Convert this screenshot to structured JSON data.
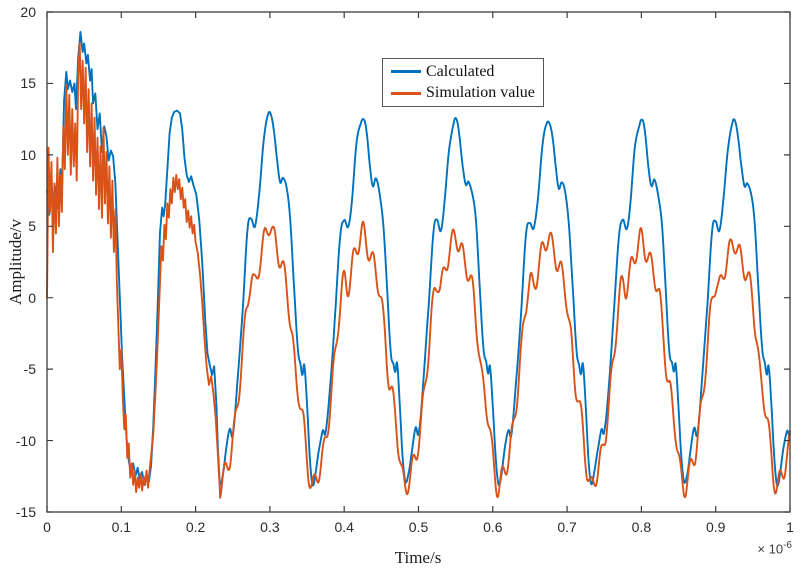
{
  "chart_data": {
    "type": "line",
    "title": "",
    "xlabel": "Time/s",
    "ylabel": "Amplitude/v",
    "x_offset": {
      "prefix": "× 10",
      "exponent": "-6"
    },
    "xlim": [
      0,
      1
    ],
    "ylim": [
      -15,
      20
    ],
    "grid": false,
    "axis_color": "#3c3c3c",
    "xticks": {
      "values": [
        0,
        0.1,
        0.2,
        0.3,
        0.4,
        0.5,
        0.6,
        0.7,
        0.8,
        0.9,
        1
      ],
      "labels": [
        "0",
        "0.1",
        "0.2",
        "0.3",
        "0.4",
        "0.5",
        "0.6",
        "0.7",
        "0.8",
        "0.9",
        "1"
      ]
    },
    "yticks": {
      "values": [
        -15,
        -10,
        -5,
        0,
        5,
        10,
        15,
        20
      ],
      "labels": [
        "-15",
        "-10",
        "-5",
        "0",
        "5",
        "10",
        "15",
        "20"
      ]
    },
    "legend": {
      "position": "top-center",
      "entries": [
        {
          "label": "Calculated",
          "color": "#0072BD"
        },
        {
          "label": "Simulation value",
          "color": "#D95319"
        }
      ]
    },
    "series": [
      {
        "name": "Calculated",
        "color": "#0072BD",
        "line_width": 1.9,
        "initial_points": [
          [
            0.0,
            7.5
          ],
          [
            0.003,
            5.8
          ],
          [
            0.006,
            8.2
          ],
          [
            0.009,
            6.0
          ],
          [
            0.012,
            7.8
          ],
          [
            0.015,
            6.2
          ],
          [
            0.018,
            9.0
          ],
          [
            0.02,
            7.2
          ],
          [
            0.023,
            13.8
          ],
          [
            0.026,
            15.8
          ],
          [
            0.028,
            14.6
          ],
          [
            0.031,
            15.2
          ],
          [
            0.034,
            14.4
          ],
          [
            0.037,
            15.0
          ],
          [
            0.039,
            13.2
          ],
          [
            0.042,
            16.8
          ],
          [
            0.045,
            18.6
          ],
          [
            0.048,
            17.2
          ],
          [
            0.05,
            17.8
          ],
          [
            0.053,
            16.4
          ],
          [
            0.055,
            17.0
          ],
          [
            0.058,
            15.2
          ],
          [
            0.06,
            16.0
          ],
          [
            0.062,
            13.6
          ],
          [
            0.065,
            14.3
          ],
          [
            0.068,
            11.8
          ],
          [
            0.071,
            12.9
          ],
          [
            0.074,
            10.2
          ],
          [
            0.077,
            12.0
          ],
          [
            0.08,
            11.3
          ],
          [
            0.083,
            9.6
          ],
          [
            0.086,
            10.3
          ],
          [
            0.089,
            9.9
          ],
          [
            0.092,
            8.0
          ],
          [
            0.095,
            4.0
          ],
          [
            0.098,
            0.0
          ],
          [
            0.101,
            -4.0
          ],
          [
            0.104,
            -7.0
          ],
          [
            0.107,
            -9.8
          ],
          [
            0.11,
            -11.4
          ],
          [
            0.113,
            -12.2
          ],
          [
            0.116,
            -11.6
          ],
          [
            0.119,
            -12.5
          ],
          [
            0.122,
            -11.9
          ],
          [
            0.125,
            -12.8
          ],
          [
            0.128,
            -12.2
          ],
          [
            0.131,
            -13.1
          ],
          [
            0.134,
            -12.5
          ],
          [
            0.137,
            -12.9
          ],
          [
            0.14,
            -11.8
          ],
          [
            0.143,
            -9.0
          ],
          [
            0.146,
            -5.0
          ],
          [
            0.149,
            -0.5
          ],
          [
            0.152,
            4.5
          ],
          [
            0.155,
            6.3
          ],
          [
            0.157,
            5.7
          ],
          [
            0.159,
            6.5
          ],
          [
            0.162,
            9.0
          ],
          [
            0.165,
            11.5
          ],
          [
            0.168,
            12.6
          ],
          [
            0.171,
            13.0
          ],
          [
            0.175,
            13.1
          ],
          [
            0.179,
            12.9
          ],
          [
            0.182,
            11.8
          ],
          [
            0.185,
            9.8
          ],
          [
            0.188,
            8.6
          ],
          [
            0.191,
            8.1
          ],
          [
            0.194,
            8.5
          ],
          [
            0.197,
            7.9
          ],
          [
            0.201,
            7.2
          ],
          [
            0.205,
            5.4
          ],
          [
            0.209,
            2.4
          ],
          [
            0.213,
            -1.6
          ],
          [
            0.216,
            -3.9
          ],
          [
            0.219,
            -4.7
          ],
          [
            0.222,
            -5.4
          ],
          [
            0.225,
            -4.8
          ],
          [
            0.228,
            -7.5
          ],
          [
            0.23,
            -10.5
          ],
          [
            0.2325,
            -13.0
          ]
        ],
        "cycle": {
          "start": 0.2325,
          "period": 0.125,
          "shape": [
            [
              0.0,
              -13.0
            ],
            [
              0.03,
              -12.4
            ],
            [
              0.07,
              -10.6
            ],
            [
              0.11,
              -9.2
            ],
            [
              0.14,
              -9.5
            ],
            [
              0.19,
              -6.0
            ],
            [
              0.25,
              -0.5
            ],
            [
              0.3,
              4.7
            ],
            [
              0.34,
              5.6
            ],
            [
              0.38,
              5.0
            ],
            [
              0.42,
              6.9
            ],
            [
              0.47,
              10.9
            ],
            [
              0.52,
              12.7
            ],
            [
              0.55,
              12.9
            ],
            [
              0.58,
              11.9
            ],
            [
              0.62,
              9.4
            ],
            [
              0.65,
              8.1
            ],
            [
              0.68,
              8.5
            ],
            [
              0.72,
              7.6
            ],
            [
              0.76,
              5.4
            ],
            [
              0.8,
              0.8
            ],
            [
              0.84,
              -3.6
            ],
            [
              0.87,
              -4.6
            ],
            [
              0.89,
              -5.3
            ],
            [
              0.91,
              -4.7
            ],
            [
              0.94,
              -7.6
            ],
            [
              0.97,
              -11.2
            ],
            [
              1.0,
              -13.0
            ]
          ],
          "pos_scales": [
            1.0,
            0.97,
            0.96,
            0.955,
            0.96,
            0.955,
            0.955
          ]
        },
        "ripple": {
          "amp": 0.12,
          "freq": 75,
          "phase": 0
        }
      },
      {
        "name": "Simulation value",
        "color": "#D95319",
        "line_width": 1.9,
        "initial_points": [
          [
            0.0,
            0.0
          ],
          [
            0.002,
            10.5
          ],
          [
            0.004,
            6.0
          ],
          [
            0.006,
            9.5
          ],
          [
            0.008,
            3.2
          ],
          [
            0.01,
            8.0
          ],
          [
            0.012,
            4.5
          ],
          [
            0.014,
            9.8
          ],
          [
            0.016,
            5.0
          ],
          [
            0.018,
            8.6
          ],
          [
            0.02,
            6.0
          ],
          [
            0.022,
            12.0
          ],
          [
            0.024,
            9.0
          ],
          [
            0.026,
            14.9
          ],
          [
            0.028,
            10.0
          ],
          [
            0.03,
            14.2
          ],
          [
            0.032,
            8.6
          ],
          [
            0.034,
            13.2
          ],
          [
            0.036,
            9.2
          ],
          [
            0.038,
            12.2
          ],
          [
            0.04,
            8.2
          ],
          [
            0.042,
            15.6
          ],
          [
            0.044,
            17.8
          ],
          [
            0.046,
            13.2
          ],
          [
            0.048,
            16.6
          ],
          [
            0.05,
            12.2
          ],
          [
            0.052,
            16.1
          ],
          [
            0.054,
            10.2
          ],
          [
            0.056,
            14.6
          ],
          [
            0.058,
            9.2
          ],
          [
            0.06,
            13.6
          ],
          [
            0.062,
            8.2
          ],
          [
            0.064,
            12.6
          ],
          [
            0.066,
            7.2
          ],
          [
            0.068,
            11.2
          ],
          [
            0.07,
            6.2
          ],
          [
            0.072,
            10.6
          ],
          [
            0.074,
            5.6
          ],
          [
            0.076,
            11.9
          ],
          [
            0.078,
            6.6
          ],
          [
            0.08,
            10.2
          ],
          [
            0.082,
            5.2
          ],
          [
            0.084,
            9.2
          ],
          [
            0.086,
            4.2
          ],
          [
            0.088,
            8.2
          ],
          [
            0.09,
            3.2
          ],
          [
            0.092,
            6.2
          ],
          [
            0.094,
            1.2
          ],
          [
            0.096,
            -2.0
          ],
          [
            0.098,
            -5.0
          ],
          [
            0.1,
            -3.6
          ],
          [
            0.102,
            -7.0
          ],
          [
            0.104,
            -9.2
          ],
          [
            0.106,
            -8.2
          ],
          [
            0.108,
            -11.2
          ],
          [
            0.11,
            -10.2
          ],
          [
            0.112,
            -12.6
          ],
          [
            0.114,
            -11.6
          ],
          [
            0.116,
            -13.1
          ],
          [
            0.118,
            -12.1
          ],
          [
            0.12,
            -13.6
          ],
          [
            0.122,
            -12.6
          ],
          [
            0.124,
            -13.3
          ],
          [
            0.126,
            -12.3
          ],
          [
            0.128,
            -13.5
          ],
          [
            0.13,
            -12.5
          ],
          [
            0.132,
            -13.1
          ],
          [
            0.134,
            -12.1
          ],
          [
            0.136,
            -13.3
          ],
          [
            0.138,
            -12.1
          ],
          [
            0.14,
            -11.1
          ],
          [
            0.143,
            -9.6
          ],
          [
            0.146,
            -6.6
          ],
          [
            0.149,
            -3.1
          ],
          [
            0.152,
            1.0
          ],
          [
            0.154,
            3.6
          ],
          [
            0.156,
            2.6
          ],
          [
            0.158,
            5.1
          ],
          [
            0.16,
            4.1
          ],
          [
            0.162,
            6.6
          ],
          [
            0.164,
            5.6
          ],
          [
            0.166,
            7.6
          ],
          [
            0.168,
            6.6
          ],
          [
            0.17,
            8.4
          ],
          [
            0.172,
            7.4
          ],
          [
            0.174,
            8.6
          ],
          [
            0.176,
            7.6
          ],
          [
            0.178,
            8.3
          ],
          [
            0.18,
            6.9
          ],
          [
            0.182,
            7.7
          ],
          [
            0.184,
            6.3
          ],
          [
            0.186,
            6.9
          ],
          [
            0.188,
            5.3
          ],
          [
            0.19,
            6.1
          ],
          [
            0.192,
            4.9
          ],
          [
            0.194,
            5.7
          ],
          [
            0.196,
            4.5
          ],
          [
            0.198,
            5.1
          ],
          [
            0.2,
            3.9
          ],
          [
            0.203,
            3.1
          ],
          [
            0.206,
            1.6
          ],
          [
            0.209,
            -0.4
          ],
          [
            0.212,
            -2.9
          ],
          [
            0.215,
            -4.9
          ],
          [
            0.218,
            -6.1
          ],
          [
            0.221,
            -5.5
          ],
          [
            0.224,
            -6.7
          ],
          [
            0.227,
            -8.4
          ],
          [
            0.23,
            -11.0
          ],
          [
            0.2325,
            -13.3
          ]
        ],
        "cycle": {
          "start": 0.2325,
          "period": 0.125,
          "shape": [
            [
              0.0,
              -13.3
            ],
            [
              0.04,
              -12.6
            ],
            [
              0.09,
              -11.6
            ],
            [
              0.13,
              -10.4
            ],
            [
              0.18,
              -8.0
            ],
            [
              0.24,
              -4.2
            ],
            [
              0.3,
              -0.3
            ],
            [
              0.34,
              1.2
            ],
            [
              0.38,
              0.8
            ],
            [
              0.44,
              2.6
            ],
            [
              0.5,
              4.0
            ],
            [
              0.54,
              4.6
            ],
            [
              0.58,
              3.8
            ],
            [
              0.63,
              2.8
            ],
            [
              0.68,
              1.8
            ],
            [
              0.73,
              0.2
            ],
            [
              0.78,
              -2.8
            ],
            [
              0.82,
              -5.6
            ],
            [
              0.86,
              -7.0
            ],
            [
              0.9,
              -8.8
            ],
            [
              0.94,
              -11.2
            ],
            [
              0.97,
              -12.7
            ],
            [
              1.0,
              -13.3
            ]
          ],
          "pos_scales": [
            1.12,
            1.0,
            0.95,
            0.93,
            0.9,
            0.85,
            0.85
          ]
        },
        "ripple": {
          "amp": 0.75,
          "freq": 75,
          "phase": 2
        }
      }
    ]
  }
}
